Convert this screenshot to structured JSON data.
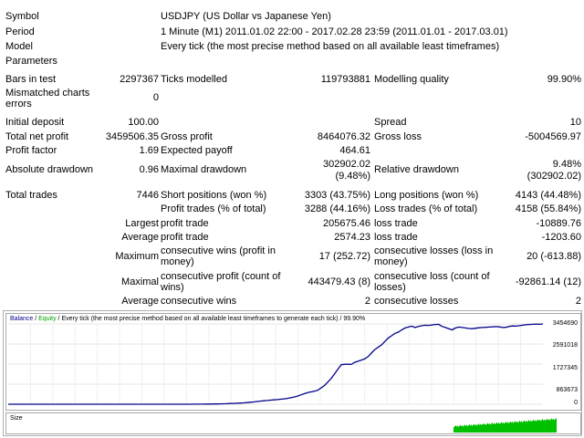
{
  "report": {
    "symbol_label": "Symbol",
    "symbol_value": "USDJPY (US Dollar vs Japanese Yen)",
    "period_label": "Period",
    "period_value": "1 Minute (M1) 2011.01.02 22:00 - 2017.02.28 23:59 (2011.01.01 - 2017.03.01)",
    "model_label": "Model",
    "model_value": "Every tick (the most precise method based on all available least timeframes)",
    "parameters_label": "Parameters",
    "bars_label": "Bars in test",
    "bars_value": "2297367",
    "ticks_label": "Ticks modelled",
    "ticks_value": "119793881",
    "quality_label": "Modelling quality",
    "quality_value": "99.90%",
    "mismatched_label": "Mismatched charts errors",
    "mismatched_value": "0",
    "deposit_label": "Initial deposit",
    "deposit_value": "100.00",
    "spread_label": "Spread",
    "spread_value": "10",
    "net_profit_label": "Total net profit",
    "net_profit_value": "3459506.35",
    "gross_profit_label": "Gross profit",
    "gross_profit_value": "8464076.32",
    "gross_loss_label": "Gross loss",
    "gross_loss_value": "-5004569.97",
    "profit_factor_label": "Profit factor",
    "profit_factor_value": "1.69",
    "expected_payoff_label": "Expected payoff",
    "expected_payoff_value": "464.61",
    "abs_dd_label": "Absolute drawdown",
    "abs_dd_value": "0.96",
    "max_dd_label": "Maximal drawdown",
    "max_dd_value_1": "302902.02",
    "max_dd_value_2": "(9.48%)",
    "rel_dd_label": "Relative drawdown",
    "rel_dd_value_1": "9.48%",
    "rel_dd_value_2": "(302902.02)",
    "total_trades_label": "Total trades",
    "total_trades_value": "7446",
    "short_label": "Short positions (won %)",
    "short_value": "3303 (43.75%)",
    "long_label": "Long positions (won %)",
    "long_value": "4143 (44.48%)",
    "profit_trades_label": "Profit trades (% of total)",
    "profit_trades_value": "3288 (44.16%)",
    "loss_trades_label": "Loss trades (% of total)",
    "loss_trades_value": "4158 (55.84%)",
    "largest_label": "Largest",
    "largest_profit_label": "profit trade",
    "largest_profit_value": "205675.46",
    "largest_loss_label": "loss trade",
    "largest_loss_value": "-10889.76",
    "average_label": "Average",
    "average_profit_label": "profit trade",
    "average_profit_value": "2574.23",
    "average_loss_label": "loss trade",
    "average_loss_value": "-1203.60",
    "maximum_label": "Maximum",
    "max_cons_wins_label": "consecutive wins (profit in money)",
    "max_cons_wins_value": "17 (252.72)",
    "max_cons_losses_label": "consecutive losses (loss in money)",
    "max_cons_losses_value": "20 (-613.88)",
    "maximal_label": "Maximal",
    "maximal_profit_label": "consecutive profit (count of wins)",
    "maximal_profit_value": "443479.43 (8)",
    "maximal_loss_label": "consecutive loss (count of losses)",
    "maximal_loss_value": "-92861.14 (12)",
    "avg_cons_label": "Average",
    "avg_cons_wins_label": "consecutive wins",
    "avg_cons_wins_value": "2",
    "avg_cons_losses_label": "consecutive losses",
    "avg_cons_losses_value": "2"
  },
  "chart": {
    "balance_label": "Balance",
    "sep1": " / ",
    "equity_label": "Equity",
    "rest": " / Every tick (the most precise method based on all available least timeframes to generate each tick) / 99.90%",
    "size_label": "Size",
    "y_ticks": [
      "3454690",
      "2591018",
      "1727345",
      "863673",
      "0"
    ],
    "balance_color": "#00008b",
    "equity_color": "#00a000",
    "size_color": "#00c000"
  },
  "chart_data": {
    "type": "line",
    "series": [
      {
        "name": "Balance",
        "values": [
          0,
          0,
          0,
          0,
          0,
          0,
          0,
          0,
          0,
          0,
          0,
          0,
          0,
          0,
          0,
          0,
          0,
          0,
          0,
          0,
          0,
          0,
          0,
          0,
          0,
          0,
          0,
          0,
          0,
          0,
          0,
          0,
          0,
          0,
          0,
          0,
          0,
          0,
          0,
          0,
          100,
          150,
          200,
          250,
          300,
          400,
          500,
          600,
          700,
          800,
          900,
          1000,
          1200,
          1500,
          1800,
          2200,
          2800,
          3500,
          4500,
          6000,
          8000,
          10000,
          13000,
          16000,
          20000,
          25000,
          30000,
          36000,
          43000,
          50000,
          60000,
          72000,
          85000,
          100000,
          118000,
          135000,
          150000,
          160000,
          175000,
          190000,
          200000,
          215000,
          230000,
          250000,
          280000,
          310000,
          350000,
          400000,
          450000,
          500000,
          530000,
          560000,
          600000,
          700000,
          800000,
          950000,
          1100000,
          1300000,
          1500000,
          1700000,
          1720000,
          1720000,
          1710000,
          1800000,
          1850000,
          1900000,
          1950000,
          2050000,
          2200000,
          2350000,
          2450000,
          2550000,
          2700000,
          2850000,
          2950000,
          3050000,
          3100000,
          3200000,
          3280000,
          3320000,
          3360000,
          3300000,
          3350000,
          3380000,
          3400000,
          3390000,
          3410000,
          3430000,
          3440000,
          3350000,
          3300000,
          3250000,
          3200000,
          3280000,
          3320000,
          3300000,
          3280000,
          3260000,
          3250000,
          3270000,
          3290000,
          3300000,
          3310000,
          3320000,
          3330000,
          3340000,
          3330000,
          3300000,
          3310000,
          3350000,
          3370000,
          3360000,
          3380000,
          3400000,
          3420000,
          3430000,
          3440000,
          3450000,
          3440000,
          3454690
        ]
      }
    ],
    "ylim": [
      0,
      3454690
    ]
  }
}
